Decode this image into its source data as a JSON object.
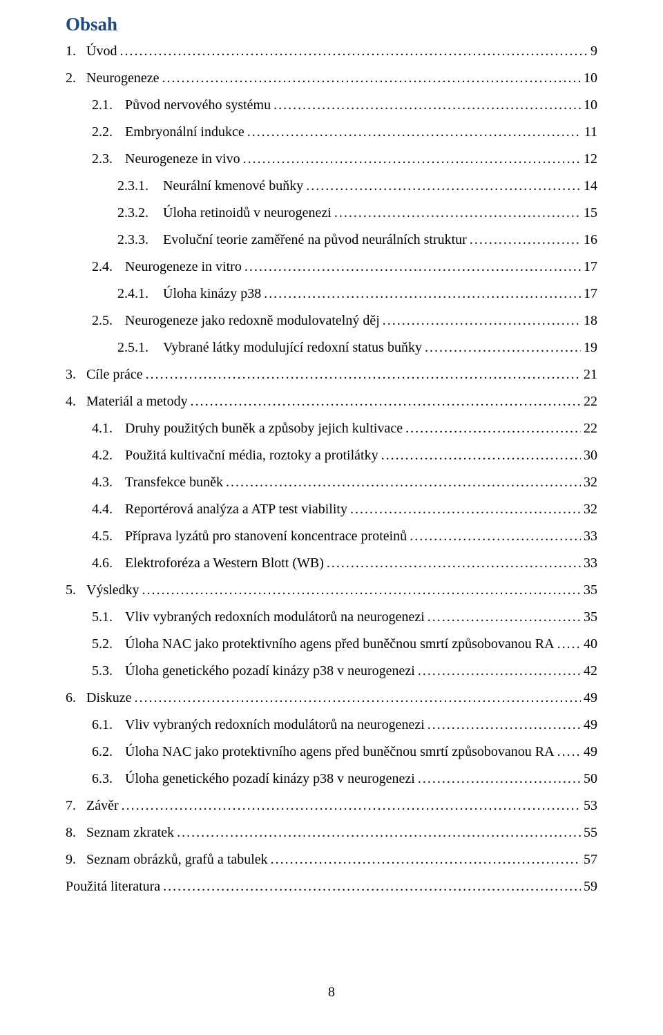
{
  "title": "Obsah",
  "page_number": "8",
  "colors": {
    "title_color": "#1f497d",
    "text_color": "#000000",
    "background": "#ffffff"
  },
  "typography": {
    "font_family": "Times New Roman",
    "title_fontsize_pt": 20,
    "body_fontsize_pt": 15,
    "title_weight": "bold",
    "line_height": 1.95
  },
  "toc": [
    {
      "num": "1.",
      "label": "Úvod",
      "page": "9",
      "level": 0
    },
    {
      "num": "2.",
      "label": "Neurogeneze",
      "page": "10",
      "level": 0
    },
    {
      "num": "2.1.",
      "label": "Původ nervového systému",
      "page": "10",
      "level": 1
    },
    {
      "num": "2.2.",
      "label": "Embryonální indukce",
      "page": "11",
      "level": 1
    },
    {
      "num": "2.3.",
      "label": "Neurogeneze in vivo",
      "page": "12",
      "level": 1
    },
    {
      "num": "2.3.1.",
      "label": "Neurální kmenové buňky",
      "page": "14",
      "level": 2
    },
    {
      "num": "2.3.2.",
      "label": "Úloha retinoidů v neurogenezi",
      "page": "15",
      "level": 2
    },
    {
      "num": "2.3.3.",
      "label": "Evoluční teorie zaměřené na původ neurálních struktur",
      "page": "16",
      "level": 2
    },
    {
      "num": "2.4.",
      "label": "Neurogeneze in vitro",
      "page": "17",
      "level": 1
    },
    {
      "num": "2.4.1.",
      "label": "Úloha kinázy p38",
      "page": "17",
      "level": 2
    },
    {
      "num": "2.5.",
      "label": "Neurogeneze jako redoxně modulovatelný děj",
      "page": "18",
      "level": 1
    },
    {
      "num": "2.5.1.",
      "label": "Vybrané látky modulující redoxní status buňky",
      "page": "19",
      "level": 2
    },
    {
      "num": "3.",
      "label": "Cíle práce",
      "page": "21",
      "level": 0
    },
    {
      "num": "4.",
      "label": "Materiál a metody",
      "page": "22",
      "level": 0
    },
    {
      "num": "4.1.",
      "label": "Druhy použitých buněk a způsoby jejich kultivace",
      "page": "22",
      "level": 1
    },
    {
      "num": "4.2.",
      "label": "Použitá kultivační média, roztoky a protilátky",
      "page": "30",
      "level": 1
    },
    {
      "num": "4.3.",
      "label": "Transfekce buněk",
      "page": "32",
      "level": 1
    },
    {
      "num": "4.4.",
      "label": "Reportérová analýza a ATP test viability",
      "page": "32",
      "level": 1
    },
    {
      "num": "4.5.",
      "label": "Příprava lyzátů pro stanovení koncentrace proteinů",
      "page": "33",
      "level": 1
    },
    {
      "num": "4.6.",
      "label": "Elektroforéza a Western Blott (WB)",
      "page": "33",
      "level": 1
    },
    {
      "num": "5.",
      "label": "Výsledky",
      "page": "35",
      "level": 0
    },
    {
      "num": "5.1.",
      "label": "Vliv vybraných redoxních modulátorů na neurogenezi",
      "page": "35",
      "level": 1
    },
    {
      "num": "5.2.",
      "label": "Úloha NAC jako protektivního agens před buněčnou smrtí způsobovanou RA",
      "page": "40",
      "level": 1
    },
    {
      "num": "5.3.",
      "label": "Úloha genetického pozadí kinázy p38 v neurogenezi",
      "page": "42",
      "level": 1
    },
    {
      "num": "6.",
      "label": "Diskuze",
      "page": "49",
      "level": 0
    },
    {
      "num": "6.1.",
      "label": "Vliv vybraných redoxních modulátorů na neurogenezi",
      "page": "49",
      "level": 1
    },
    {
      "num": "6.2.",
      "label": "Úloha NAC jako protektivního agens před buněčnou smrtí způsobovanou RA",
      "page": "49",
      "level": 1
    },
    {
      "num": "6.3.",
      "label": "Úloha genetického pozadí kinázy p38 v neurogenezi",
      "page": "50",
      "level": 1
    },
    {
      "num": "7.",
      "label": "Závěr",
      "page": "53",
      "level": 0
    },
    {
      "num": "8.",
      "label": "Seznam zkratek",
      "page": "55",
      "level": 0
    },
    {
      "num": "9.",
      "label": "Seznam obrázků, grafů a tabulek",
      "page": "57",
      "level": 0
    },
    {
      "num": "",
      "label": "Použitá literatura",
      "page": "59",
      "level": -1
    }
  ]
}
